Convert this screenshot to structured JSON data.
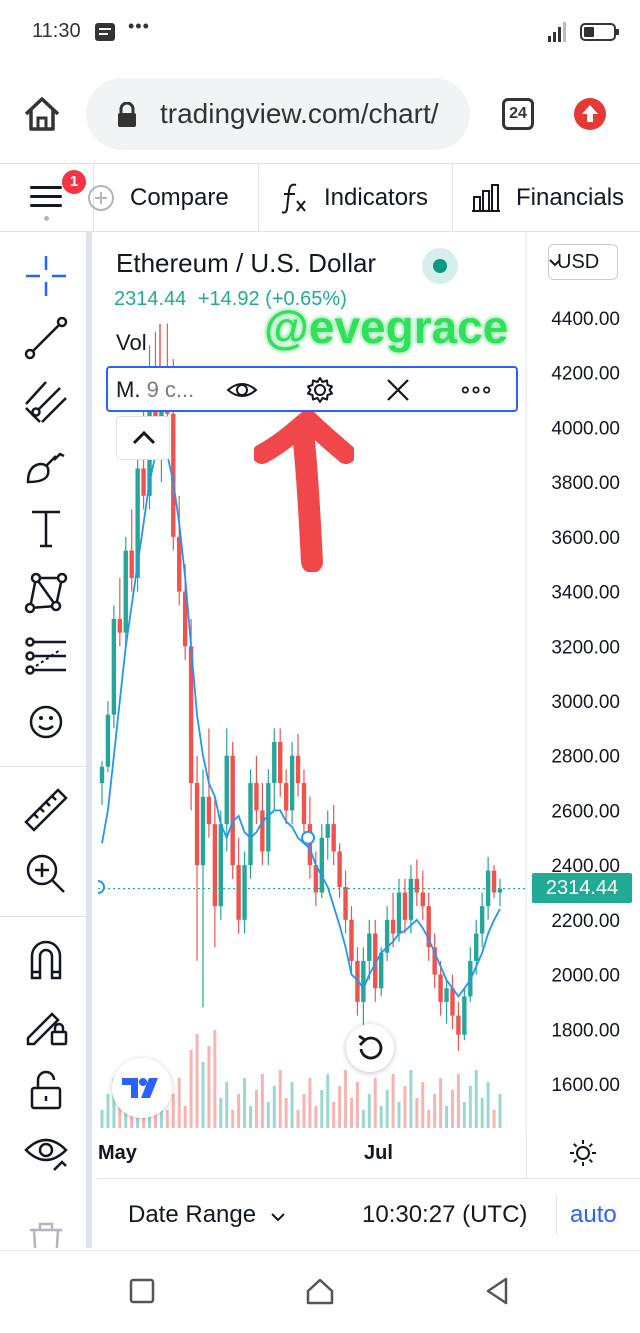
{
  "status_bar": {
    "time": "11:30",
    "more": "•••"
  },
  "browser": {
    "url": "tradingview.com/chart/",
    "tab_count": "24"
  },
  "toolbar": {
    "badge": "1",
    "compare": "Compare",
    "indicators": "Indicators",
    "financials": "Financials"
  },
  "symbol": {
    "title": "Ethereum / U.S. Dollar",
    "price": "2314.44",
    "change": "+14.92",
    "change_pct": "(+0.65%)"
  },
  "volume_label": "Vol",
  "watermark": "@evegrace",
  "study": {
    "name_prefix": "M.",
    "name_rest": "9 c..."
  },
  "currency": "USD",
  "price_tag": "2314.44",
  "chart_data": {
    "type": "candlestick",
    "symbol": "Ethereum / U.S. Dollar",
    "y_ticks": [
      "4400.00",
      "4200.00",
      "4000.00",
      "3800.00",
      "3600.00",
      "3400.00",
      "3200.00",
      "3000.00",
      "2800.00",
      "2600.00",
      "2400.00",
      "2200.00",
      "2000.00",
      "1800.00",
      "1600.00"
    ],
    "x_labels": [
      "May",
      "Jul"
    ],
    "ylim": [
      1480,
      4530
    ],
    "last_price": 2314.44,
    "candles": [
      [
        2700,
        2780,
        2620,
        2760
      ],
      [
        2760,
        3000,
        2740,
        2950
      ],
      [
        2950,
        3350,
        2900,
        3300
      ],
      [
        3300,
        3450,
        3200,
        3250
      ],
      [
        3250,
        3600,
        3200,
        3550
      ],
      [
        3550,
        3700,
        3400,
        3450
      ],
      [
        3450,
        3900,
        3400,
        3850
      ],
      [
        3850,
        4100,
        3700,
        3750
      ],
      [
        3750,
        4300,
        3700,
        4200
      ],
      [
        4200,
        4350,
        3900,
        3950
      ],
      [
        3950,
        4150,
        3800,
        4100
      ],
      [
        4100,
        4380,
        4000,
        4050
      ],
      [
        4050,
        4250,
        3550,
        3600
      ],
      [
        3600,
        3750,
        3350,
        3400
      ],
      [
        3400,
        3500,
        3150,
        3200
      ],
      [
        3200,
        3300,
        2600,
        2700
      ],
      [
        2700,
        2800,
        2050,
        2400
      ],
      [
        2400,
        2750,
        1880,
        2650
      ],
      [
        2650,
        2900,
        2500,
        2550
      ],
      [
        2550,
        2650,
        2100,
        2250
      ],
      [
        2250,
        2600,
        2200,
        2550
      ],
      [
        2550,
        2900,
        2450,
        2800
      ],
      [
        2800,
        2850,
        2350,
        2400
      ],
      [
        2400,
        2500,
        2150,
        2200
      ],
      [
        2200,
        2450,
        2150,
        2400
      ],
      [
        2400,
        2750,
        2350,
        2700
      ],
      [
        2700,
        2800,
        2550,
        2600
      ],
      [
        2600,
        2700,
        2400,
        2450
      ],
      [
        2450,
        2750,
        2400,
        2700
      ],
      [
        2700,
        2900,
        2600,
        2850
      ],
      [
        2850,
        2900,
        2650,
        2700
      ],
      [
        2700,
        2750,
        2550,
        2600
      ],
      [
        2600,
        2850,
        2550,
        2800
      ],
      [
        2800,
        2880,
        2650,
        2700
      ],
      [
        2700,
        2750,
        2500,
        2550
      ],
      [
        2550,
        2650,
        2350,
        2400
      ],
      [
        2400,
        2450,
        2250,
        2300
      ],
      [
        2300,
        2550,
        2280,
        2500
      ],
      [
        2500,
        2600,
        2420,
        2550
      ],
      [
        2550,
        2620,
        2400,
        2450
      ],
      [
        2450,
        2480,
        2280,
        2320
      ],
      [
        2320,
        2380,
        2150,
        2200
      ],
      [
        2200,
        2250,
        2000,
        2050
      ],
      [
        2050,
        2100,
        1850,
        1900
      ],
      [
        1900,
        2100,
        1700,
        2050
      ],
      [
        2050,
        2200,
        1980,
        2150
      ],
      [
        2150,
        2200,
        1900,
        1950
      ],
      [
        1950,
        2100,
        1920,
        2080
      ],
      [
        2080,
        2250,
        2050,
        2200
      ],
      [
        2200,
        2300,
        2100,
        2150
      ],
      [
        2150,
        2350,
        2120,
        2300
      ],
      [
        2300,
        2350,
        2150,
        2200
      ],
      [
        2200,
        2400,
        2150,
        2350
      ],
      [
        2350,
        2420,
        2250,
        2300
      ],
      [
        2300,
        2380,
        2200,
        2250
      ],
      [
        2250,
        2300,
        2050,
        2100
      ],
      [
        2100,
        2150,
        1950,
        2000
      ],
      [
        2000,
        2050,
        1850,
        1900
      ],
      [
        1900,
        1980,
        1820,
        1950
      ],
      [
        1950,
        2000,
        1800,
        1850
      ],
      [
        1850,
        1900,
        1720,
        1780
      ],
      [
        1780,
        1950,
        1760,
        1920
      ],
      [
        1920,
        2100,
        1900,
        2050
      ],
      [
        2050,
        2200,
        2000,
        2150
      ],
      [
        2150,
        2300,
        2100,
        2250
      ],
      [
        2250,
        2430,
        2200,
        2380
      ],
      [
        2380,
        2400,
        2280,
        2300
      ],
      [
        2300,
        2350,
        2250,
        2314
      ]
    ],
    "moving_average": [
      2480,
      2600,
      2800,
      3000,
      3200,
      3350,
      3500,
      3650,
      3800,
      3900,
      3950,
      3900,
      3800,
      3650,
      3450,
      3200,
      2950,
      2800,
      2700,
      2650,
      2550,
      2500,
      2560,
      2580,
      2520,
      2500,
      2520,
      2560,
      2580,
      2600,
      2600,
      2560,
      2540,
      2500,
      2480,
      2460,
      2400,
      2360,
      2320,
      2250,
      2180,
      2100,
      2000,
      1980,
      1950,
      2000,
      2040,
      2080,
      2100,
      2120,
      2150,
      2160,
      2180,
      2200,
      2170,
      2130,
      2080,
      2030,
      1980,
      1950,
      1920,
      1950,
      1980,
      2030,
      2080,
      2150,
      2200,
      2240
    ]
  },
  "bottom": {
    "date_range": "Date Range",
    "clock": "10:30:27 (UTC)",
    "auto": "auto"
  },
  "colors": {
    "up": "#26a69a",
    "down": "#ef5350",
    "ma": "#2196f3",
    "accent": "#2962ff",
    "watermark": "#2ee05a",
    "arrow": "#f0474a"
  }
}
